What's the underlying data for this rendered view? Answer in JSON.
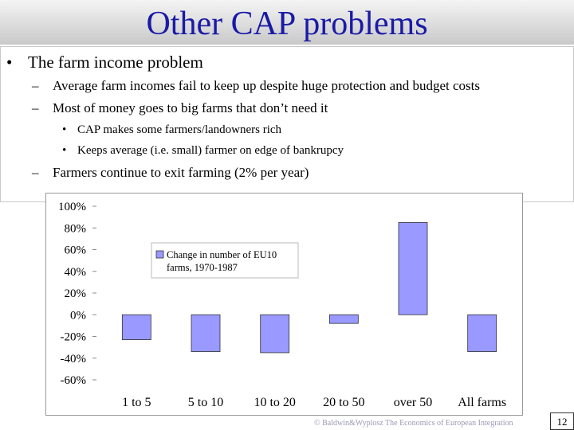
{
  "slide": {
    "title": "Other CAP problems",
    "bullet_symbol": "•",
    "dash_symbol": "–",
    "bullet": "The farm income problem",
    "sub_bullets": [
      "Average farm incomes fail to keep up despite huge protection and budget costs",
      "Most of money goes to big farms that don’t need it"
    ],
    "sub_sub_bullets": [
      "CAP makes some farmers/landowners rich",
      "Keeps average (i.e. small) farmer on edge of bankrupcy"
    ],
    "last_sub_bullet": "Farmers continue to exit farming (2% per year)",
    "footer": "© Baldwin&Wyplosz The Economics of European Integration",
    "page_number": "12"
  },
  "colors": {
    "title": "#1a1aa6",
    "bar_fill": "#9999ff",
    "bar_stroke": "#333333",
    "footer": "#9a9ab4"
  },
  "chart_data": {
    "type": "bar",
    "categories": [
      "1 to 5",
      "5 to 10",
      "10 to 20",
      "20 to 50",
      "over 50",
      "All farms"
    ],
    "series": [
      {
        "name": "Change in number of EU10 farms, 1970-1987",
        "values": [
          -23,
          -34,
          -35,
          -8,
          85,
          -34
        ]
      }
    ],
    "ylim": [
      -60,
      100
    ],
    "yticks": [
      100,
      80,
      60,
      40,
      20,
      0,
      -20,
      -40,
      -60
    ],
    "ytick_labels": [
      "100%",
      "80%",
      "60%",
      "40%",
      "20%",
      "0%",
      "-20%",
      "-40%",
      "-60%"
    ],
    "legend": "upper-left",
    "grid": false,
    "title": "",
    "xlabel": "",
    "ylabel": ""
  }
}
